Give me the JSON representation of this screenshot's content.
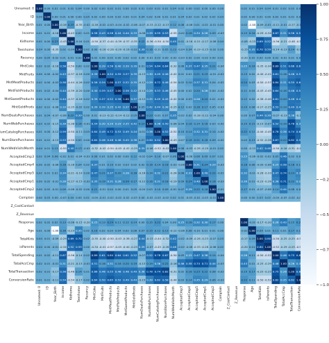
{
  "chart_data": {
    "type": "heatmap",
    "title": "",
    "variables": [
      "Unnamed: 0",
      "ID",
      "Year_Birth",
      "Income",
      "Kidhome",
      "Teenhome",
      "Recency",
      "MntCoke",
      "MntFruits",
      "MntMeatProducts",
      "MntFishProducts",
      "MntSweetProducts",
      "MntGoldProds",
      "NumDealsPurchases",
      "NumWebPurchases",
      "NumCatalogPurchases",
      "NumStorePurchases",
      "NumWebVisitsMonth",
      "AcceptedCmp3",
      "AcceptedCmp4",
      "AcceptedCmp5",
      "AcceptedCmp1",
      "AcceptedCmp2",
      "Complain",
      "Z_CostContact",
      "Z_Revenue",
      "Response",
      "Age",
      "TotalKids",
      "isParents",
      "TotalSpending",
      "TotalAccCmp",
      "TotalTransaction",
      "ConversionRate"
    ],
    "empty_variables": [
      "Z_CostContact",
      "Z_Revenue"
    ],
    "rows": {
      "Unnamed: 0": [
        1.0,
        0.0,
        0.01,
        0.01,
        0.02,
        0.04,
        0.0,
        0.02,
        0.0,
        0.02,
        0.01,
        0.0,
        0.02,
        0.01,
        0.03,
        0.01,
        0.01,
        0.04,
        0.02,
        0.0,
        0.02,
        0.0,
        0.0,
        0.0,
        null,
        null,
        0.02,
        0.01,
        0.04,
        0.04,
        0.01,
        0.02,
        0.02,
        0.01
      ],
      "ID": [
        0.0,
        1.0,
        0.0,
        0.01,
        0.0,
        0.0,
        0.05,
        0.02,
        0.0,
        0.0,
        0.02,
        0.0,
        0.01,
        0.04,
        0.02,
        0.0,
        0.01,
        0.01,
        0.04,
        0.02,
        0.01,
        0.02,
        0.02,
        0.03,
        null,
        null,
        0.02,
        0.0,
        0.01,
        0.0,
        0.02,
        0.01,
        0.01,
        0.01
      ],
      "Year_Birth": [
        0.01,
        0.0,
        1.0,
        -0.16,
        0.23,
        -0.35,
        -0.02,
        -0.16,
        -0.02,
        -0.03,
        -0.04,
        -0.02,
        -0.06,
        -0.07,
        -0.15,
        -0.12,
        -0.13,
        0.12,
        0.06,
        -0.06,
        0.01,
        -0.01,
        -0.01,
        0.0,
        null,
        null,
        0.02,
        -1.0,
        -0.09,
        -0.01,
        -0.11,
        -0.01,
        -0.17,
        -0.11
      ],
      "Income": [
        0.01,
        0.01,
        -0.16,
        1.0,
        -0.43,
        0.02,
        0.01,
        0.58,
        0.43,
        0.58,
        0.44,
        0.44,
        0.33,
        -0.08,
        0.39,
        0.59,
        0.53,
        -0.55,
        -0.02,
        0.18,
        0.34,
        0.28,
        0.09,
        -0.03,
        null,
        null,
        0.13,
        0.16,
        -0.29,
        -0.34,
        0.67,
        0.31,
        0.56,
        0.54
      ],
      "Kidhome": [
        0.02,
        0.0,
        0.23,
        -0.43,
        1.0,
        -0.04,
        0.01,
        -0.5,
        -0.37,
        -0.44,
        -0.39,
        -0.37,
        -0.35,
        0.22,
        -0.36,
        -0.5,
        -0.5,
        0.45,
        0.01,
        -0.16,
        -0.21,
        -0.17,
        -0.08,
        0.04,
        null,
        null,
        -0.08,
        -0.23,
        0.69,
        0.52,
        -0.56,
        -0.21,
        -0.48,
        -0.54
      ],
      "Teenhome": [
        0.04,
        0.0,
        -0.35,
        0.02,
        -0.04,
        1.0,
        0.02,
        0.0,
        -0.18,
        -0.26,
        -0.2,
        -0.16,
        -0.02,
        0.39,
        0.16,
        -0.11,
        0.05,
        0.13,
        -0.04,
        0.04,
        -0.19,
        -0.15,
        -0.02,
        0.0,
        null,
        null,
        -0.15,
        0.35,
        0.7,
        0.59,
        -0.14,
        -0.13,
        0.14,
        -0.17
      ],
      "Recency": [
        0.0,
        0.05,
        -0.02,
        0.01,
        0.01,
        0.02,
        1.0,
        0.02,
        0.0,
        0.02,
        0.0,
        0.02,
        0.02,
        0.0,
        -0.01,
        0.03,
        0.0,
        -0.02,
        -0.03,
        0.02,
        0.0,
        -0.02,
        0.0,
        0.01,
        null,
        null,
        -0.2,
        0.02,
        0.02,
        0.0,
        0.02,
        -0.01,
        0.01,
        0.02
      ],
      "MntCoke": [
        0.02,
        0.02,
        -0.16,
        0.58,
        -0.5,
        0.0,
        0.02,
        1.0,
        0.39,
        0.56,
        0.4,
        0.39,
        0.39,
        0.01,
        0.54,
        0.64,
        0.64,
        -0.32,
        0.06,
        0.37,
        0.47,
        0.35,
        0.21,
        -0.04,
        null,
        null,
        0.25,
        0.16,
        -0.35,
        -0.34,
        0.89,
        0.51,
        0.66,
        0.64
      ],
      "MntFruits": [
        0.0,
        0.0,
        -0.02,
        0.43,
        -0.37,
        -0.18,
        0.0,
        0.39,
        1.0,
        0.54,
        0.59,
        0.57,
        0.39,
        -0.13,
        0.3,
        0.49,
        0.46,
        -0.42,
        0.01,
        0.01,
        0.21,
        0.19,
        -0.01,
        -0.01,
        null,
        null,
        0.13,
        0.02,
        -0.4,
        -0.41,
        0.61,
        0.16,
        0.46,
        0.5
      ],
      "MntMeatProducts": [
        0.02,
        0.0,
        -0.03,
        0.58,
        -0.44,
        -0.26,
        0.02,
        0.56,
        0.54,
        1.0,
        0.57,
        0.52,
        0.35,
        -0.12,
        0.29,
        0.72,
        0.48,
        -0.54,
        0.02,
        0.1,
        0.37,
        0.31,
        0.04,
        -0.02,
        null,
        null,
        0.24,
        0.03,
        -0.5,
        -0.57,
        0.84,
        0.31,
        0.55,
        0.65
      ],
      "MntFishProducts": [
        0.01,
        0.02,
        -0.04,
        0.44,
        -0.39,
        -0.2,
        0.0,
        0.4,
        0.59,
        0.57,
        1.0,
        0.58,
        0.42,
        -0.14,
        0.29,
        0.53,
        0.46,
        -0.45,
        0.0,
        0.02,
        0.2,
        0.26,
        0.0,
        -0.02,
        null,
        null,
        0.11,
        0.04,
        -0.43,
        -0.45,
        0.64,
        0.18,
        0.46,
        0.52
      ],
      "MntSweetProducts": [
        0.0,
        0.0,
        -0.02,
        0.44,
        -0.37,
        -0.16,
        0.02,
        0.39,
        0.57,
        0.52,
        0.58,
        1.0,
        0.37,
        -0.12,
        0.35,
        0.49,
        0.45,
        -0.42,
        0.0,
        0.03,
        0.26,
        0.24,
        0.01,
        -0.02,
        null,
        null,
        0.12,
        0.02,
        -0.38,
        -0.4,
        0.61,
        0.2,
        0.48,
        0.49
      ],
      "MntGoldProds": [
        0.02,
        0.01,
        -0.06,
        0.33,
        -0.35,
        -0.02,
        0.02,
        0.39,
        0.39,
        0.35,
        0.42,
        0.37,
        1.0,
        0.05,
        0.42,
        0.44,
        0.38,
        -0.25,
        0.12,
        0.02,
        0.18,
        0.17,
        0.05,
        -0.03,
        null,
        null,
        0.14,
        0.06,
        -0.27,
        -0.25,
        0.52,
        0.19,
        0.49,
        0.43
      ],
      "NumDealsPurchases": [
        0.01,
        0.04,
        -0.07,
        -0.08,
        0.22,
        0.39,
        0.0,
        0.01,
        -0.13,
        -0.12,
        -0.14,
        -0.12,
        0.05,
        1.0,
        0.23,
        -0.01,
        0.07,
        0.35,
        -0.02,
        0.02,
        -0.18,
        -0.12,
        -0.04,
        0.0,
        null,
        null,
        0.0,
        0.07,
        0.44,
        0.39,
        -0.07,
        -0.13,
        0.36,
        -0.15
      ],
      "NumWebPurchases": [
        0.03,
        0.02,
        -0.15,
        0.39,
        -0.36,
        0.16,
        -0.01,
        0.54,
        0.3,
        0.29,
        0.29,
        0.35,
        0.42,
        0.23,
        1.0,
        0.38,
        0.5,
        -0.06,
        0.04,
        0.16,
        0.14,
        0.16,
        0.03,
        -0.02,
        null,
        null,
        0.15,
        0.15,
        -0.15,
        -0.07,
        0.52,
        0.19,
        0.78,
        0.39
      ],
      "NumCatalogPurchases": [
        0.01,
        0.0,
        -0.12,
        0.59,
        -0.5,
        -0.11,
        0.03,
        0.64,
        0.49,
        0.72,
        0.53,
        0.49,
        0.44,
        -0.01,
        0.38,
        1.0,
        0.52,
        -0.52,
        0.1,
        0.14,
        0.32,
        0.31,
        0.1,
        -0.02,
        null,
        null,
        0.22,
        0.12,
        -0.44,
        -0.45,
        0.78,
        0.36,
        0.74,
        0.62
      ],
      "NumStorePurchases": [
        0.01,
        0.01,
        -0.13,
        0.53,
        -0.5,
        0.05,
        0.0,
        0.64,
        0.46,
        0.48,
        0.46,
        0.45,
        0.38,
        0.07,
        0.5,
        0.52,
        1.0,
        -0.43,
        -0.07,
        0.18,
        0.21,
        0.18,
        0.09,
        -0.02,
        null,
        null,
        0.04,
        0.13,
        -0.32,
        -0.28,
        0.67,
        0.22,
        0.82,
        0.58
      ],
      "NumWebVisitsMonth": [
        0.04,
        0.01,
        0.12,
        -0.55,
        0.45,
        0.13,
        -0.02,
        -0.32,
        -0.42,
        -0.54,
        -0.45,
        -0.42,
        -0.25,
        0.35,
        -0.06,
        -0.52,
        -0.43,
        1.0,
        0.06,
        -0.03,
        -0.28,
        -0.19,
        -0.01,
        0.02,
        null,
        null,
        0.0,
        -0.12,
        0.42,
        0.48,
        -0.5,
        -0.16,
        -0.31,
        -0.44
      ],
      "AcceptedCmp3": [
        0.02,
        0.04,
        0.06,
        -0.02,
        0.01,
        -0.04,
        -0.03,
        0.06,
        0.01,
        0.02,
        0.0,
        0.0,
        0.12,
        -0.02,
        0.04,
        0.1,
        -0.07,
        0.06,
        1.0,
        -0.08,
        0.08,
        0.09,
        0.07,
        0.01,
        null,
        null,
        0.25,
        -0.06,
        -0.02,
        -0.02,
        0.05,
        0.46,
        0.02,
        0.03
      ],
      "AcceptedCmp4": [
        0.0,
        0.02,
        -0.06,
        0.18,
        -0.16,
        0.04,
        0.02,
        0.37,
        0.01,
        0.1,
        0.02,
        0.03,
        0.02,
        0.02,
        0.16,
        0.14,
        0.18,
        -0.03,
        -0.08,
        1.0,
        0.31,
        0.24,
        0.29,
        -0.03,
        null,
        null,
        0.18,
        0.06,
        -0.09,
        -0.08,
        0.25,
        0.58,
        0.18,
        0.14
      ],
      "AcceptedCmp5": [
        0.02,
        0.01,
        0.01,
        0.34,
        -0.21,
        -0.19,
        0.0,
        0.47,
        0.21,
        0.37,
        0.2,
        0.26,
        0.18,
        -0.18,
        0.14,
        0.32,
        0.21,
        -0.28,
        0.08,
        0.31,
        1.0,
        0.4,
        0.22,
        -0.01,
        null,
        null,
        0.32,
        -0.01,
        -0.28,
        -0.33,
        0.47,
        0.74,
        0.23,
        0.35
      ],
      "AcceptedCmp1": [
        0.0,
        0.02,
        -0.01,
        0.28,
        -0.17,
        -0.15,
        -0.02,
        0.35,
        0.19,
        0.31,
        0.26,
        0.24,
        0.17,
        -0.12,
        0.16,
        0.31,
        0.18,
        -0.19,
        0.09,
        0.24,
        0.4,
        1.0,
        0.18,
        -0.03,
        null,
        null,
        0.3,
        0.01,
        -0.23,
        -0.28,
        0.38,
        0.71,
        0.22,
        0.29
      ],
      "AcceptedCmp2": [
        0.0,
        0.02,
        -0.01,
        0.09,
        -0.08,
        -0.02,
        0.0,
        0.21,
        -0.01,
        0.04,
        0.0,
        0.01,
        0.05,
        -0.04,
        0.03,
        0.1,
        0.09,
        -0.01,
        0.07,
        0.29,
        0.22,
        0.18,
        1.0,
        -0.01,
        null,
        null,
        0.17,
        0.01,
        -0.07,
        -0.08,
        0.14,
        0.44,
        0.08,
        0.06
      ],
      "Complain": [
        0.0,
        0.03,
        0.0,
        -0.03,
        0.04,
        0.0,
        0.01,
        -0.04,
        -0.01,
        -0.02,
        -0.02,
        -0.02,
        -0.03,
        0.0,
        -0.02,
        -0.02,
        -0.02,
        0.02,
        0.01,
        -0.03,
        -0.01,
        -0.03,
        -0.01,
        1.0,
        null,
        null,
        0.0,
        0.0,
        0.03,
        0.02,
        -0.04,
        -0.03,
        -0.02,
        -0.03
      ],
      "Z_CostContact": [
        null,
        null,
        null,
        null,
        null,
        null,
        null,
        null,
        null,
        null,
        null,
        null,
        null,
        null,
        null,
        null,
        null,
        null,
        null,
        null,
        null,
        null,
        null,
        null,
        null,
        null,
        null,
        null,
        null,
        null,
        null,
        null,
        null,
        null
      ],
      "Z_Revenue": [
        null,
        null,
        null,
        null,
        null,
        null,
        null,
        null,
        null,
        null,
        null,
        null,
        null,
        null,
        null,
        null,
        null,
        null,
        null,
        null,
        null,
        null,
        null,
        null,
        null,
        null,
        null,
        null,
        null,
        null,
        null,
        null,
        null,
        null
      ],
      "Response": [
        0.02,
        0.02,
        0.02,
        0.13,
        -0.08,
        -0.15,
        -0.2,
        0.25,
        0.13,
        0.24,
        0.11,
        0.12,
        0.14,
        0.0,
        0.15,
        0.22,
        0.04,
        0.0,
        0.25,
        0.18,
        0.32,
        0.3,
        0.17,
        0.0,
        null,
        null,
        1.0,
        -0.02,
        -0.17,
        -0.2,
        0.26,
        0.43,
        0.15,
        0.23
      ],
      "Age": [
        0.01,
        0.0,
        -1.0,
        0.16,
        -0.23,
        0.35,
        0.02,
        0.16,
        0.02,
        0.03,
        0.04,
        0.02,
        0.06,
        0.07,
        0.15,
        0.12,
        0.13,
        -0.12,
        -0.06,
        0.06,
        -0.01,
        0.01,
        0.01,
        0.0,
        null,
        null,
        -0.02,
        1.0,
        0.09,
        0.01,
        0.11,
        0.01,
        0.17,
        0.11
      ],
      "TotalKids": [
        0.04,
        0.01,
        -0.09,
        -0.29,
        0.69,
        0.7,
        0.02,
        -0.35,
        -0.4,
        -0.5,
        -0.43,
        -0.38,
        -0.27,
        0.44,
        -0.15,
        -0.44,
        -0.32,
        0.42,
        -0.02,
        -0.09,
        -0.28,
        -0.23,
        -0.07,
        0.03,
        null,
        null,
        -0.17,
        0.09,
        1.0,
        0.8,
        -0.5,
        -0.25,
        -0.25,
        -0.5
      ],
      "isParents": [
        0.04,
        0.0,
        -0.01,
        -0.34,
        0.52,
        0.59,
        0.0,
        -0.34,
        -0.41,
        -0.57,
        -0.45,
        -0.4,
        -0.25,
        0.39,
        -0.07,
        -0.45,
        -0.28,
        0.48,
        -0.02,
        -0.08,
        -0.33,
        -0.28,
        -0.08,
        0.02,
        null,
        null,
        -0.2,
        0.01,
        0.8,
        1.0,
        -0.52,
        -0.29,
        -0.25,
        -0.52
      ],
      "TotalSpending": [
        0.01,
        0.02,
        -0.11,
        0.67,
        -0.56,
        -0.14,
        0.02,
        0.89,
        0.61,
        0.84,
        0.64,
        0.61,
        0.52,
        -0.07,
        0.52,
        0.78,
        0.67,
        -0.5,
        0.05,
        0.25,
        0.47,
        0.38,
        0.14,
        -0.04,
        null,
        null,
        0.26,
        0.11,
        -0.5,
        -0.52,
        1.0,
        0.46,
        0.75,
        0.82
      ],
      "TotalAccCmp": [
        0.02,
        0.01,
        -0.01,
        0.31,
        -0.21,
        -0.13,
        -0.01,
        0.51,
        0.16,
        0.31,
        0.18,
        0.2,
        0.19,
        -0.13,
        0.19,
        0.36,
        0.22,
        -0.16,
        0.46,
        0.58,
        0.74,
        0.71,
        0.44,
        -0.03,
        null,
        null,
        0.43,
        0.01,
        -0.25,
        -0.29,
        0.46,
        1.0,
        0.26,
        0.35
      ],
      "TotalTransaction": [
        0.02,
        0.01,
        -0.17,
        0.56,
        -0.48,
        0.14,
        0.01,
        0.66,
        0.46,
        0.55,
        0.46,
        0.48,
        0.49,
        0.36,
        0.78,
        0.74,
        0.82,
        -0.31,
        0.02,
        0.18,
        0.23,
        0.22,
        0.08,
        -0.02,
        null,
        null,
        0.15,
        0.17,
        -0.25,
        -0.25,
        0.75,
        0.26,
        1.0,
        0.62
      ],
      "ConversionRate": [
        0.01,
        0.01,
        -0.11,
        0.54,
        -0.54,
        -0.17,
        0.02,
        0.64,
        0.5,
        0.65,
        0.52,
        0.49,
        0.43,
        -0.15,
        0.39,
        0.62,
        0.58,
        -0.44,
        0.03,
        0.14,
        0.35,
        0.29,
        0.06,
        -0.03,
        null,
        null,
        0.23,
        0.11,
        -0.5,
        -0.52,
        0.82,
        0.35,
        0.62,
        1.0
      ]
    },
    "colorbar": {
      "range": [
        -1.0,
        1.0
      ],
      "ticks": [
        1.0,
        0.75,
        0.5,
        0.25,
        0.0,
        -0.25,
        -0.5,
        -0.75,
        -1.0
      ],
      "tick_labels": [
        "1.00",
        "0.75",
        "0.50",
        "0.25",
        "0.00",
        "−0.25",
        "−0.50",
        "−0.75",
        "−1.00"
      ]
    },
    "colormap": "Blues",
    "annotations": "cell values shown with 2 decimals",
    "grid": false
  }
}
